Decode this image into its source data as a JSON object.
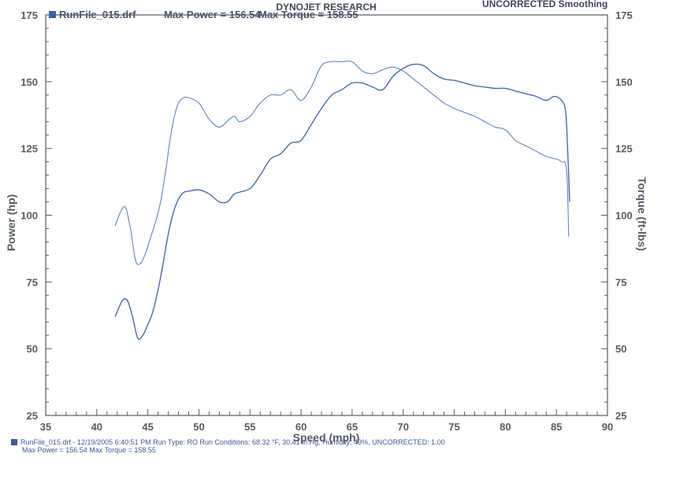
{
  "header": {
    "company": "DYNOJET RESEARCH",
    "mode": "UNCORRECTED Smoothing"
  },
  "legend": {
    "run_file": "RunFile_015.drf",
    "max_power": "Max Power = 156.54",
    "max_torque": "Max Torque = 158.55"
  },
  "footer": {
    "line1": "RunFile_015.drf - 12/19/2005 6:40:51 PM  Run Type: RO  Run Conditions: 68.32 °F, 30.41 in Hg, Humidity: 49%, UNCORRECTED: 1.00",
    "line2": "Max Power = 156.54  Max Torque = 158.55"
  },
  "colors": {
    "power": "#3f62a8",
    "torque": "#5478b8",
    "axis": "#555a66",
    "text": "#3d4658"
  },
  "chart_data": {
    "type": "line",
    "xlabel": "Speed (mph)",
    "ylabel": "Power (hp)",
    "y2label": "Torque (ft-lbs)",
    "xlim": [
      35,
      90
    ],
    "ylim": [
      25,
      175
    ],
    "y2lim": [
      25,
      175
    ],
    "x_ticks": [
      35,
      40,
      45,
      50,
      55,
      60,
      65,
      70,
      75,
      80,
      85,
      90
    ],
    "y_ticks": [
      25,
      50,
      75,
      100,
      125,
      150,
      175
    ],
    "grid": false,
    "legend_position": "top-left",
    "series": [
      {
        "name": "Power",
        "axis": "left",
        "x": [
          41.8,
          42.5,
          43.0,
          43.5,
          44.0,
          44.5,
          45.0,
          45.5,
          46.0,
          46.5,
          47.0,
          47.5,
          48.0,
          48.5,
          49.0,
          50.0,
          51.0,
          52.0,
          52.8,
          53.5,
          55.0,
          56.0,
          57.0,
          58.0,
          59.0,
          60.0,
          61.0,
          62.0,
          63.0,
          64.0,
          65.0,
          66.0,
          67.0,
          68.0,
          69.0,
          70.0,
          71.0,
          72.0,
          73.0,
          74.0,
          75.0,
          76.0,
          77.0,
          78.0,
          79.0,
          80.0,
          81.0,
          82.0,
          83.0,
          84.0,
          84.8,
          85.5,
          85.9,
          86.1,
          86.3
        ],
        "y": [
          62,
          68,
          68,
          62,
          54,
          55,
          59,
          64,
          72,
          82,
          93,
          101,
          106,
          108.5,
          109,
          109.5,
          108,
          105,
          105,
          108,
          110,
          115,
          121,
          123,
          127,
          128,
          134,
          140,
          145,
          147,
          149.5,
          149.5,
          148,
          147,
          152,
          155,
          156.5,
          156,
          153,
          151,
          150.5,
          149.5,
          148.5,
          148,
          147.5,
          147.5,
          146.5,
          145.5,
          144.5,
          143,
          144.5,
          143,
          139,
          125,
          105
        ]
      },
      {
        "name": "Torque",
        "axis": "right",
        "x": [
          41.8,
          42.3,
          42.8,
          43.3,
          43.8,
          44.3,
          44.8,
          45.3,
          45.8,
          46.3,
          46.8,
          47.2,
          47.6,
          48.0,
          48.5,
          49.0,
          50.0,
          51.0,
          52.0,
          53.0,
          53.5,
          54.0,
          55.0,
          56.0,
          57.0,
          58.0,
          59.0,
          60.0,
          61.0,
          62.0,
          63.0,
          64.0,
          65.0,
          66.0,
          67.0,
          68.0,
          69.0,
          70.0,
          71.0,
          72.0,
          73.0,
          74.0,
          75.0,
          76.0,
          77.0,
          78.0,
          79.0,
          80.0,
          81.0,
          82.0,
          83.0,
          84.0,
          85.0,
          85.5,
          86.0,
          86.2
        ],
        "y": [
          96,
          101,
          103,
          95,
          83,
          82,
          86,
          92,
          98,
          106,
          118,
          129,
          137,
          142,
          144,
          144,
          142,
          136,
          133,
          136,
          137,
          135,
          137,
          142,
          145,
          145,
          147,
          143,
          148,
          156,
          157.5,
          157.5,
          157.5,
          154,
          153,
          154.5,
          155.5,
          154,
          151,
          148,
          145,
          142,
          140,
          138.5,
          137,
          135,
          133,
          132,
          128,
          126,
          124,
          122,
          121,
          120,
          117,
          92
        ]
      }
    ]
  }
}
